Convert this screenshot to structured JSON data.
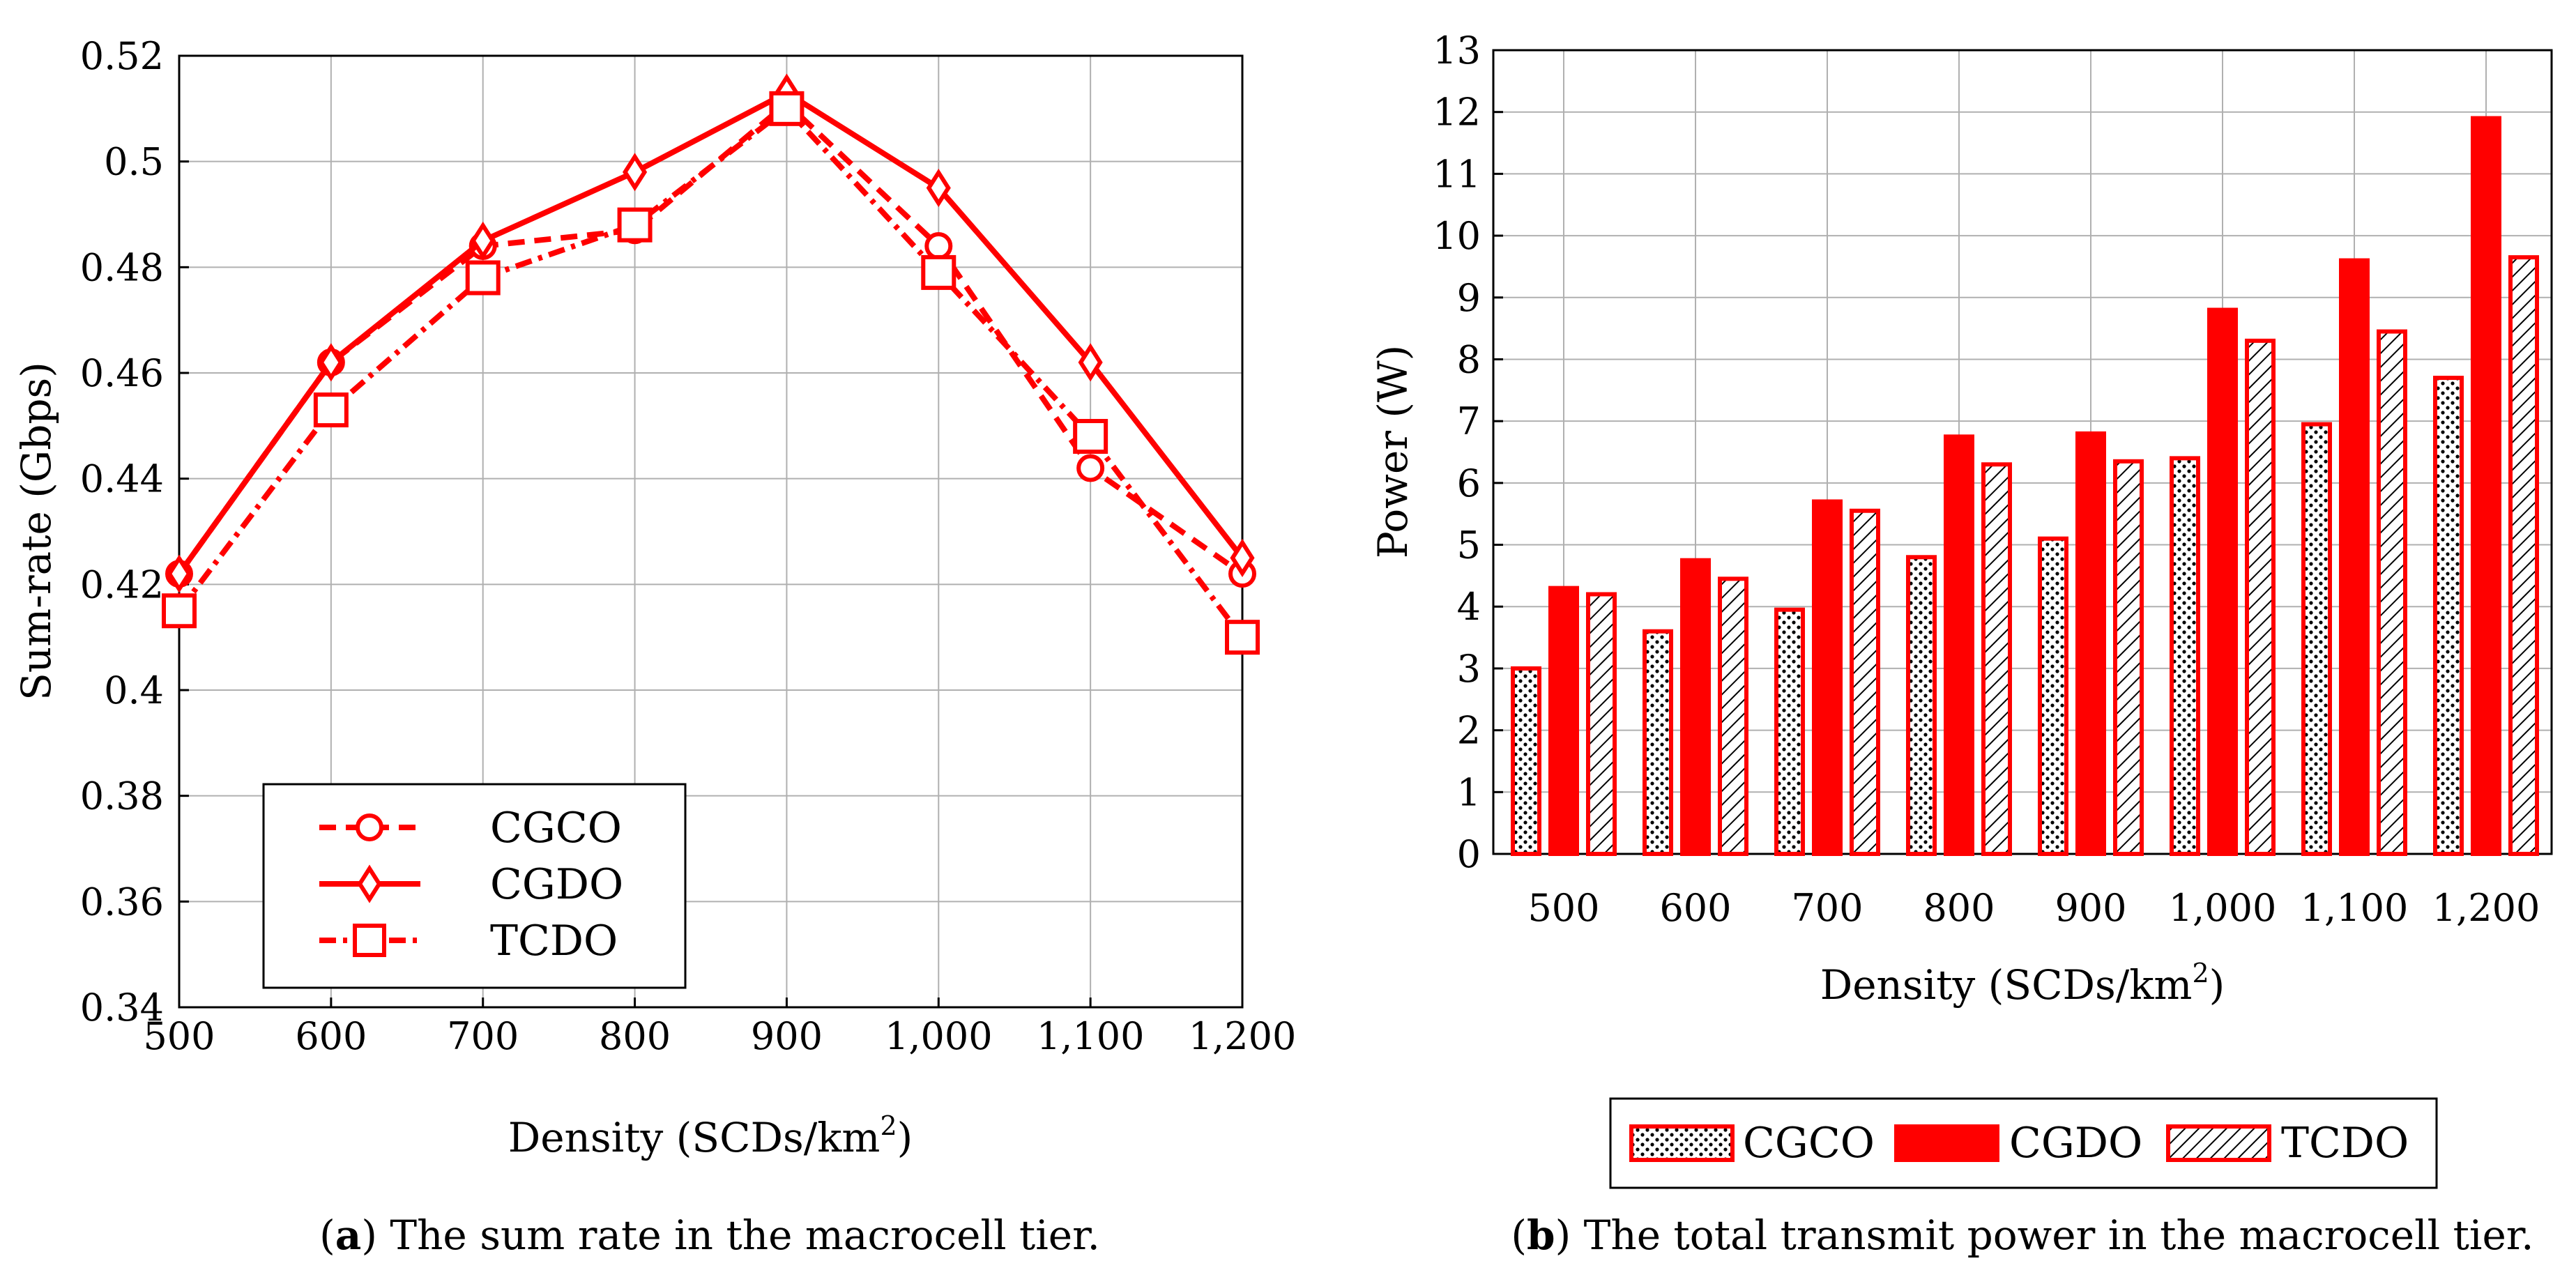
{
  "chart_data": [
    {
      "type": "line",
      "title": "",
      "xlabel": "Density (SCDs/km",
      "xlabel_sup": "2",
      "xlabel_close": ")",
      "ylabel": "Sum-rate (Gbps)",
      "x": [
        500,
        600,
        700,
        800,
        900,
        1000,
        1100,
        1200
      ],
      "x_tick_labels": [
        "500",
        "600",
        "700",
        "800",
        "900",
        "1,000",
        "1,100",
        "1,200"
      ],
      "y_tick_labels": [
        "0.34",
        "0.36",
        "0.38",
        "0.4",
        "0.42",
        "0.44",
        "0.46",
        "0.48",
        "0.5",
        "0.52"
      ],
      "xlim": [
        500,
        1200
      ],
      "ylim": [
        0.34,
        0.52
      ],
      "grid": true,
      "legend": "bottom-left",
      "series": [
        {
          "name": "CGCO",
          "values": [
            0.422,
            0.462,
            0.484,
            0.487,
            0.511,
            0.484,
            0.442,
            0.422
          ],
          "color": "#ff0000",
          "linestyle": "dashed",
          "marker": "circle"
        },
        {
          "name": "CGDO",
          "values": [
            0.422,
            0.462,
            0.485,
            0.498,
            0.513,
            0.495,
            0.462,
            0.425
          ],
          "color": "#ff0000",
          "linestyle": "solid",
          "marker": "diamond"
        },
        {
          "name": "TCDO",
          "values": [
            0.415,
            0.453,
            0.478,
            0.488,
            0.51,
            0.479,
            0.448,
            0.41
          ],
          "color": "#ff0000",
          "linestyle": "dashdot",
          "marker": "square"
        }
      ],
      "caption_label": "a",
      "caption_text": " The sum rate in the macrocell tier."
    },
    {
      "type": "bar",
      "title": "",
      "xlabel": "Density (SCDs/km",
      "xlabel_sup": "2",
      "xlabel_close": ")",
      "ylabel": "Power (W)",
      "categories": [
        "500",
        "600",
        "700",
        "800",
        "900",
        "1,000",
        "1,100",
        "1,200"
      ],
      "y_tick_labels": [
        "0",
        "1",
        "2",
        "3",
        "4",
        "5",
        "6",
        "7",
        "8",
        "9",
        "10",
        "11",
        "12",
        "13"
      ],
      "ylim": [
        0,
        13
      ],
      "grid": true,
      "legend": "bottom-center",
      "series": [
        {
          "name": "CGCO",
          "values": [
            3.0,
            3.6,
            3.95,
            4.8,
            5.1,
            6.4,
            6.95,
            7.7
          ],
          "color": "#ff0000",
          "fill": "dots"
        },
        {
          "name": "CGDO",
          "values": [
            4.3,
            4.75,
            5.7,
            6.75,
            6.8,
            8.8,
            9.6,
            11.9
          ],
          "color": "#ff0000",
          "fill": "solid"
        },
        {
          "name": "TCDO",
          "values": [
            4.2,
            4.45,
            5.55,
            6.3,
            6.35,
            8.3,
            8.45,
            9.65
          ],
          "color": "#ff0000",
          "fill": "hatch"
        }
      ],
      "caption_label": "b",
      "caption_text": " The total transmit power in the macrocell tier."
    }
  ]
}
